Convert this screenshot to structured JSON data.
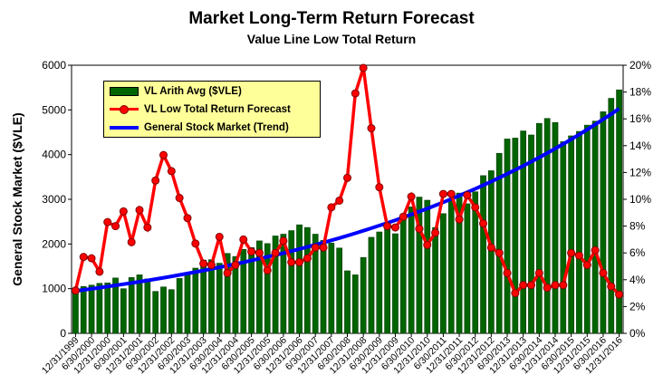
{
  "chart_data": {
    "type": "bar+line",
    "title": "Market Long-Term Return Forecast",
    "subtitle": "Value Line Low Total Return",
    "ylabel": "General Stock Market ($VLE)",
    "ylim": [
      0,
      6000
    ],
    "y_ticks": [
      "0",
      "1000",
      "2000",
      "3000",
      "4000",
      "5000",
      "6000"
    ],
    "y2lim": [
      0,
      20
    ],
    "y2_ticks": [
      "0%",
      "2%",
      "4%",
      "6%",
      "8%",
      "10%",
      "12%",
      "14%",
      "16%",
      "18%",
      "20%"
    ],
    "x_tick_labels": [
      "12/31/1999",
      "6/30/2000",
      "12/31/2000",
      "6/30/2001",
      "12/31/2001",
      "6/30/2002",
      "12/31/2002",
      "6/30/2003",
      "12/31/2003",
      "6/30/2004",
      "12/31/2004",
      "6/30/2005",
      "12/31/2005",
      "6/30/2006",
      "12/31/2006",
      "6/30/2007",
      "12/31/2007",
      "6/30/2008",
      "12/31/2008",
      "6/30/2009",
      "12/31/2009",
      "6/30/2010",
      "12/31/2010",
      "6/30/2011",
      "12/31/2011",
      "6/30/2012",
      "12/31/2012",
      "6/30/2013",
      "12/31/2013",
      "6/30/2014",
      "12/31/2014",
      "6/30/2015",
      "12/31/2015",
      "6/30/2016",
      "12/31/2016"
    ],
    "series": [
      {
        "name": "VL Arith Avg ($VLE)",
        "kind": "bar",
        "axis": "left",
        "color": "#006400",
        "values": [
          1000,
          1050,
          1080,
          1120,
          1130,
          1240,
          1000,
          1250,
          1310,
          1220,
          940,
          1040,
          980,
          1230,
          1340,
          1460,
          1640,
          1650,
          1570,
          1790,
          1720,
          1880,
          1920,
          2070,
          2010,
          2180,
          2220,
          2300,
          2430,
          2370,
          2220,
          2080,
          2020,
          1910,
          1400,
          1310,
          1700,
          2150,
          2270,
          2380,
          2230,
          2560,
          2830,
          3050,
          2980,
          2370,
          2680,
          3000,
          3140,
          2900,
          3170,
          3530,
          3640,
          4030,
          4350,
          4370,
          4530,
          4440,
          4700,
          4810,
          4720,
          4290,
          4420,
          4520,
          4660,
          4750,
          4960,
          5260,
          5450
        ]
      },
      {
        "name": "VL Low Total Return Forecast",
        "kind": "line",
        "axis": "right",
        "color": "#ff0000",
        "values": [
          3.2,
          5.7,
          5.6,
          4.6,
          8.3,
          8.0,
          9.1,
          6.8,
          9.2,
          7.9,
          11.4,
          13.3,
          12.1,
          10.1,
          8.6,
          6.7,
          5.2,
          5.1,
          7.2,
          4.5,
          5.1,
          7.0,
          6.1,
          6.0,
          4.7,
          6.0,
          6.9,
          5.3,
          5.3,
          5.6,
          6.4,
          6.4,
          9.4,
          9.9,
          11.6,
          17.9,
          19.8,
          15.3,
          10.9,
          8.0,
          7.9,
          8.7,
          10.2,
          7.8,
          6.6,
          7.5,
          10.4,
          10.4,
          8.5,
          10.3,
          9.4,
          8.2,
          6.4,
          6.0,
          4.5,
          3.0,
          3.6,
          3.6,
          4.5,
          3.4,
          3.6,
          3.6,
          6.0,
          5.8,
          5.1,
          6.2,
          4.5,
          3.5,
          2.9
        ]
      },
      {
        "name": "General Stock Market (Trend)",
        "kind": "line",
        "axis": "left",
        "color": "#0000ff",
        "values_from": 950,
        "values_to": 5030
      }
    ],
    "legend_position": "top-left"
  }
}
